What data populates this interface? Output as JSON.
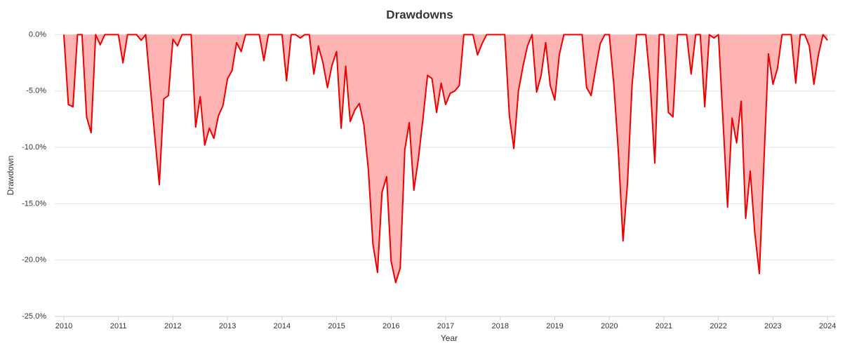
{
  "chart_data": {
    "type": "area",
    "title": "Drawdowns",
    "xlabel": "Year",
    "ylabel": "Drawdown",
    "x": [
      2010,
      2010.083,
      2010.167,
      2010.25,
      2010.333,
      2010.417,
      2010.5,
      2010.583,
      2010.667,
      2010.75,
      2010.833,
      2010.917,
      2011,
      2011.083,
      2011.167,
      2011.25,
      2011.333,
      2011.417,
      2011.5,
      2011.583,
      2011.667,
      2011.75,
      2011.833,
      2011.917,
      2012,
      2012.083,
      2012.167,
      2012.25,
      2012.333,
      2012.417,
      2012.5,
      2012.583,
      2012.667,
      2012.75,
      2012.833,
      2012.917,
      2013,
      2013.083,
      2013.167,
      2013.25,
      2013.333,
      2013.417,
      2013.5,
      2013.583,
      2013.667,
      2013.75,
      2013.833,
      2013.917,
      2014,
      2014.083,
      2014.167,
      2014.25,
      2014.333,
      2014.417,
      2014.5,
      2014.583,
      2014.667,
      2014.75,
      2014.833,
      2014.917,
      2015,
      2015.083,
      2015.167,
      2015.25,
      2015.333,
      2015.417,
      2015.5,
      2015.583,
      2015.667,
      2015.75,
      2015.833,
      2015.917,
      2016,
      2016.083,
      2016.167,
      2016.25,
      2016.333,
      2016.417,
      2016.5,
      2016.583,
      2016.667,
      2016.75,
      2016.833,
      2016.917,
      2017,
      2017.083,
      2017.167,
      2017.25,
      2017.333,
      2017.417,
      2017.5,
      2017.583,
      2017.667,
      2017.75,
      2017.833,
      2017.917,
      2018,
      2018.083,
      2018.167,
      2018.25,
      2018.333,
      2018.417,
      2018.5,
      2018.583,
      2018.667,
      2018.75,
      2018.833,
      2018.917,
      2019,
      2019.083,
      2019.167,
      2019.25,
      2019.333,
      2019.417,
      2019.5,
      2019.583,
      2019.667,
      2019.75,
      2019.833,
      2019.917,
      2020,
      2020.083,
      2020.167,
      2020.25,
      2020.333,
      2020.417,
      2020.5,
      2020.583,
      2020.667,
      2020.75,
      2020.833,
      2020.917,
      2021,
      2021.083,
      2021.167,
      2021.25,
      2021.333,
      2021.417,
      2021.5,
      2021.583,
      2021.667,
      2021.75,
      2021.833,
      2021.917,
      2022,
      2022.083,
      2022.167,
      2022.25,
      2022.333,
      2022.417,
      2022.5,
      2022.583,
      2022.667,
      2022.75,
      2022.833,
      2022.917,
      2023,
      2023.083,
      2023.167,
      2023.25,
      2023.333,
      2023.417,
      2023.5,
      2023.583,
      2023.667,
      2023.75,
      2023.833,
      2023.917,
      2024
    ],
    "series": [
      {
        "name": "Drawdown",
        "color": "#ee0000",
        "fill": "#ffb3b3",
        "values": [
          0,
          -6.2,
          -6.4,
          0,
          0,
          -7.3,
          -8.7,
          0,
          -0.9,
          0,
          0,
          0,
          0,
          -2.5,
          0,
          0,
          0,
          -0.5,
          0,
          -4.5,
          -9,
          -13.3,
          -5.7,
          -5.4,
          -0.4,
          -1.0,
          0,
          0,
          0,
          -8.2,
          -5.5,
          -9.8,
          -8.3,
          -9.2,
          -7.2,
          -6.3,
          -3.9,
          -3.2,
          -0.7,
          -1.5,
          0,
          0,
          0,
          0,
          -2.3,
          0,
          0,
          0,
          0,
          -4.1,
          0,
          0,
          -0.3,
          0,
          0,
          -3.5,
          -1.0,
          -2.5,
          -4.7,
          -2.7,
          -1.5,
          -8.3,
          -2.8,
          -7.7,
          -6.7,
          -6.1,
          -8.0,
          -12.0,
          -18.6,
          -21.1,
          -14.0,
          -12.6,
          -20.1,
          -22.0,
          -20.7,
          -10.2,
          -7.8,
          -13.8,
          -11.0,
          -7.5,
          -3.6,
          -3.9,
          -6.9,
          -4.3,
          -6.2,
          -5.2,
          -5.0,
          -4.5,
          0,
          0,
          0,
          -1.8,
          -0.8,
          0,
          0,
          0,
          0,
          0,
          -7.2,
          -10.1,
          -5.0,
          -2.8,
          -1.0,
          0,
          -5.1,
          -3.6,
          -0.7,
          -4.5,
          -5.8,
          -1.8,
          0,
          0,
          0,
          0,
          0,
          -4.7,
          -5.4,
          -3.0,
          -0.8,
          0,
          0,
          -4.5,
          -10.5,
          -18.3,
          -13.2,
          -4.5,
          0,
          0,
          0,
          -4.3,
          -11.4,
          0,
          0,
          -6.9,
          -7.3,
          0,
          0,
          0,
          -3.5,
          0,
          0,
          -6.4,
          0,
          -0.3,
          0,
          -7.5,
          -15.3,
          -7.4,
          -9.6,
          -5.9,
          -16.3,
          -12.1,
          -17.6,
          -21.2,
          -11.5,
          -1.7,
          -4.4,
          -3.0,
          0,
          0,
          0,
          -4.3,
          0,
          0,
          -1.0,
          -4.4,
          -1.8,
          0,
          -0.5
        ]
      }
    ],
    "xlim": [
      2009.833,
      2024.14
    ],
    "xticks": [
      2010,
      2011,
      2012,
      2013,
      2014,
      2015,
      2016,
      2017,
      2018,
      2019,
      2020,
      2021,
      2022,
      2023,
      2024
    ],
    "ylim": [
      -25,
      0.4
    ],
    "yticks": [
      {
        "value": 0,
        "label": "0.0%"
      },
      {
        "value": -5,
        "label": "-5.0%"
      },
      {
        "value": -10,
        "label": "-10.0%"
      },
      {
        "value": -15,
        "label": "-15.0%"
      },
      {
        "value": -20,
        "label": "-20.0%"
      },
      {
        "value": -25,
        "label": "-25.0%"
      }
    ],
    "grid": true
  }
}
